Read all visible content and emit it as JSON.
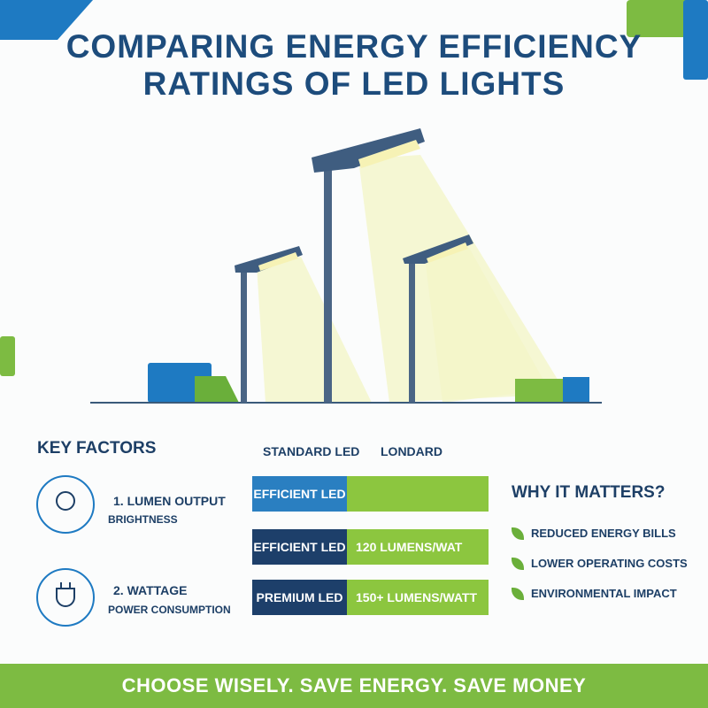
{
  "header": {
    "title_lines": [
      "COMPARING ENERGY EFFICIENCY",
      "RATINGS OF LED LIGHTS"
    ]
  },
  "key_factors": {
    "title": "KEY FACTORS",
    "items": [
      {
        "label": "1. LUMEN OUTPUT",
        "sub": "BRIGHTNESS"
      },
      {
        "label": "2. WATTAGE",
        "sub": "POWER CONSUMPTION"
      }
    ]
  },
  "comparison": {
    "headers": [
      "STANDARD LED",
      "LONDARD"
    ],
    "rows": [
      {
        "name": "EFFICIENT LED"
      },
      {
        "name": "EFFICIENT LED",
        "value": "120 LUMENS/WAT"
      },
      {
        "name": "PREMIUM LED",
        "value": "150+ LUMENS/WATT"
      }
    ]
  },
  "why": {
    "title": "WHY IT MATTERS?",
    "items": [
      "REDUCED ENERGY BILLS",
      "LOWER OPERATING COSTS",
      "ENVIRONMENTAL IMPACT"
    ]
  },
  "footer": {
    "text": "CHOOSE WISELY. SAVE ENERGY. SAVE MONEY"
  }
}
